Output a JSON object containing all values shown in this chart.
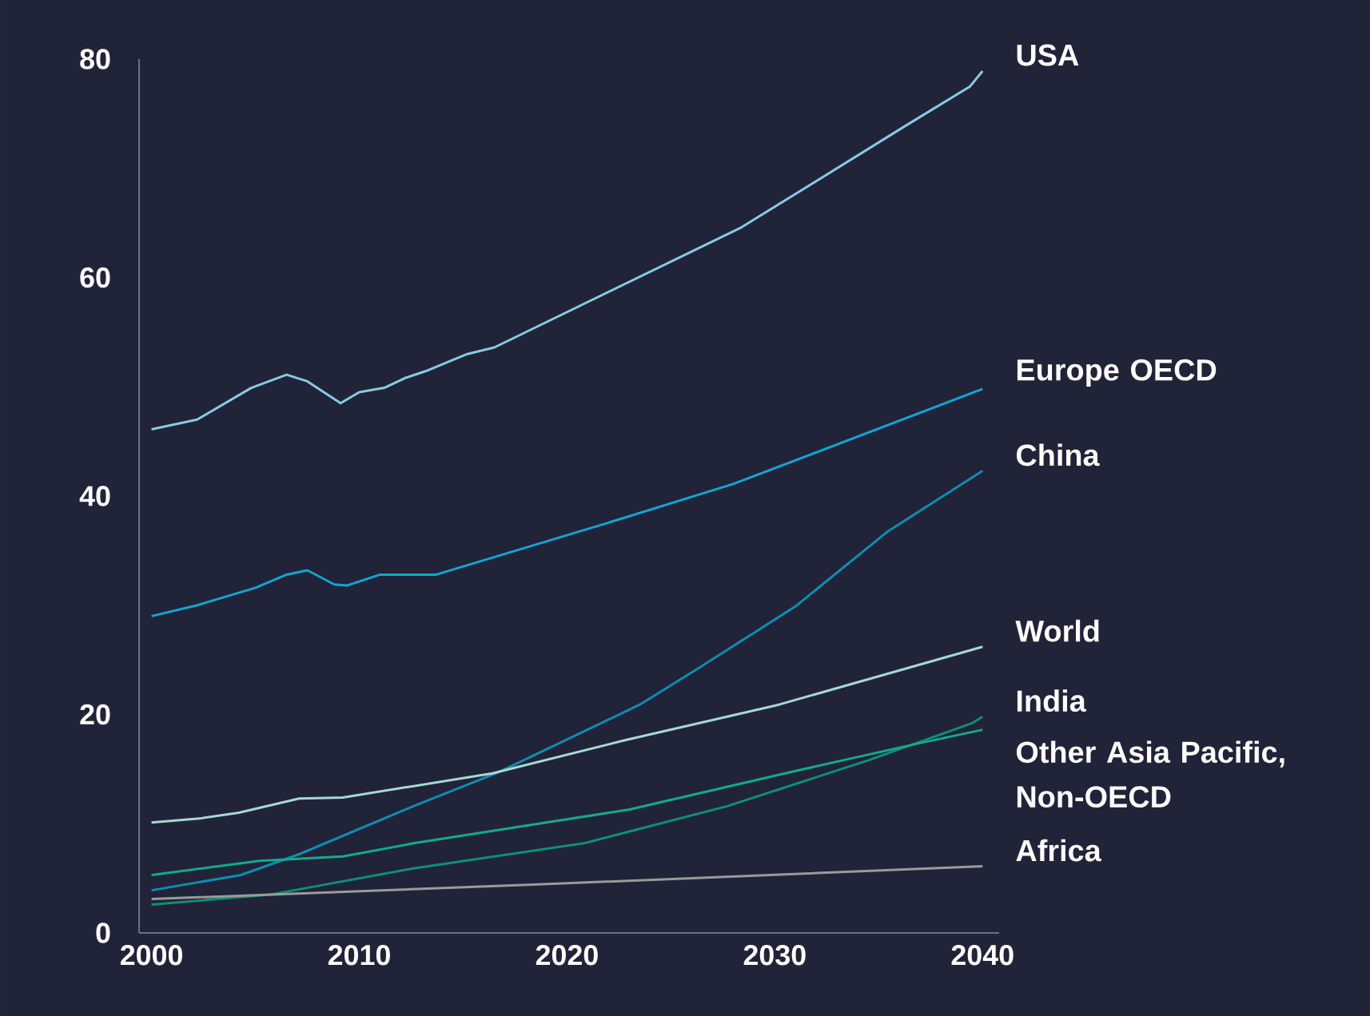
{
  "chart_data": {
    "type": "line",
    "xlim": [
      1999.4,
      2040.8
    ],
    "ylim": [
      0,
      80
    ],
    "xticks": [
      2000,
      2010,
      2020,
      2030,
      2040
    ],
    "yticks": [
      0,
      20,
      40,
      60,
      80
    ],
    "series": [
      {
        "name": "USA",
        "color": "#86cbe3",
        "x": [
          2000,
          2002.2,
          2004.8,
          2006.5,
          2007.5,
          2009.1,
          2010,
          2011.2,
          2012.2,
          2013.3,
          2015.2,
          2016.5,
          2028.4,
          2036.3,
          2039.4,
          2040
        ],
        "values": [
          46.1,
          47.0,
          49.9,
          51.1,
          50.5,
          48.5,
          49.5,
          49.9,
          50.8,
          51.5,
          53.0,
          53.6,
          64.6,
          73.9,
          77.5,
          78.9
        ]
      },
      {
        "name": "Europe OECD",
        "color": "#10a6d2",
        "x": [
          2000,
          2002.2,
          2005,
          2006.5,
          2007.5,
          2008.8,
          2009.4,
          2011,
          2013.7,
          2021.9,
          2028,
          2040
        ],
        "values": [
          29.0,
          30.0,
          31.6,
          32.8,
          33.2,
          31.9,
          31.8,
          32.8,
          32.8,
          37.5,
          41.1,
          49.8
        ]
      },
      {
        "name": "China",
        "color": "#0e8db2",
        "x": [
          2000,
          2004.3,
          2007.1,
          2012.6,
          2016.7,
          2023.5,
          2026.3,
          2031,
          2035.4,
          2040
        ],
        "values": [
          3.9,
          5.3,
          7.2,
          11.6,
          14.7,
          20.9,
          24.2,
          29.9,
          36.7,
          42.3
        ]
      },
      {
        "name": "World",
        "color": "#a6d9d0",
        "x": [
          2000,
          2002.4,
          2004.2,
          2007.1,
          2009.2,
          2016.4,
          2022.7,
          2030.2,
          2040
        ],
        "values": [
          10.1,
          10.5,
          11.0,
          12.3,
          12.4,
          14.6,
          17.6,
          20.9,
          26.2
        ]
      },
      {
        "name": "India",
        "color": "#0c9076",
        "x": [
          2000,
          2005.7,
          2012.6,
          2020.8,
          2027.7,
          2034.5,
          2039.5,
          2040
        ],
        "values": [
          2.6,
          3.5,
          5.9,
          8.2,
          11.6,
          15.8,
          19.2,
          19.8
        ]
      },
      {
        "name": "Other Asia Pacific, Non-OECD",
        "color": "#12ab8c",
        "x": [
          2000,
          2005.2,
          2009.2,
          2012.6,
          2023,
          2030.7,
          2036.8,
          2040
        ],
        "values": [
          5.3,
          6.6,
          7.0,
          8.2,
          11.3,
          14.7,
          17.3,
          18.6
        ]
      },
      {
        "name": "Africa",
        "color": "#9b9b9b",
        "x": [
          2000,
          2018.1,
          2040
        ],
        "values": [
          3.1,
          4.4,
          6.1
        ]
      }
    ]
  }
}
